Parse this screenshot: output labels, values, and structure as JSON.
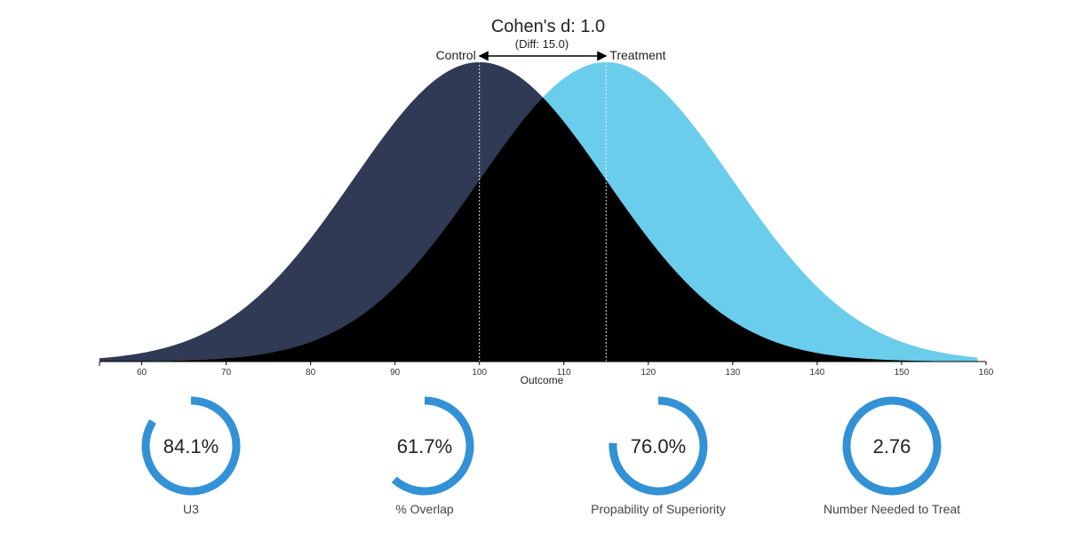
{
  "chart_data": {
    "type": "area",
    "title": "Cohen's d: 1.0",
    "subtitle": "(Diff: 15.0)",
    "xlabel": "Outcome",
    "xlim": [
      55,
      160
    ],
    "xticks": [
      60,
      70,
      80,
      90,
      100,
      110,
      120,
      130,
      140,
      150,
      160
    ],
    "series": [
      {
        "name": "Control",
        "mean": 100,
        "sd": 15,
        "color": "#313a54"
      },
      {
        "name": "Treatment",
        "mean": 115,
        "sd": 15,
        "color": "#6bcdec"
      }
    ],
    "overlap_color": "#000000",
    "metrics": [
      {
        "label": "U3",
        "display": "84.1%",
        "fraction": 0.841
      },
      {
        "label": "% Overlap",
        "display": "61.7%",
        "fraction": 0.617
      },
      {
        "label": "Propability of Superiority",
        "display": "76.0%",
        "fraction": 0.76
      },
      {
        "label": "Number Needed to Treat",
        "display": "2.76",
        "fraction": 1.0
      }
    ],
    "gauge_color": "#3391d6"
  }
}
